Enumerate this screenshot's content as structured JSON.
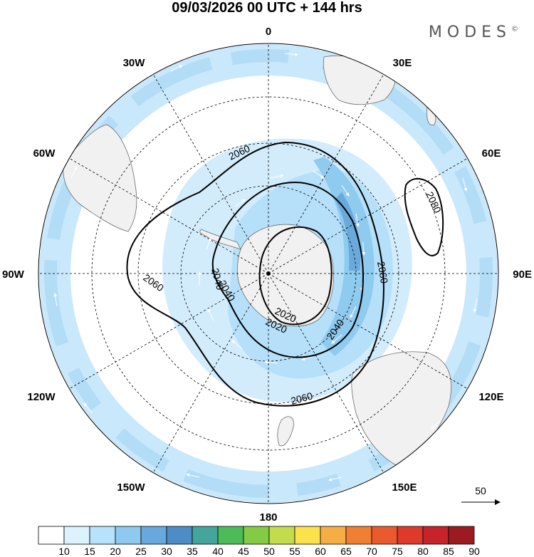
{
  "header": {
    "title": "09/03/2026  00 UTC  + 144 hrs",
    "brand": "MODES",
    "brand_mark": "©"
  },
  "map": {
    "projection": "south-polar-stereographic",
    "longitude_labels": {
      "top": "0",
      "bottom": "180",
      "left": "90W",
      "right": "90E",
      "upper_left_30": "30W",
      "upper_left_60": "60W",
      "upper_right_30": "30E",
      "upper_right_60": "60E",
      "lower_left_60": "120W",
      "lower_left_30": "150W",
      "lower_right_60": "120E",
      "lower_right_30": "150E"
    },
    "contour_labels": {
      "c1": "2060",
      "c2": "2060",
      "c3": "2080",
      "c4": "2040",
      "c5": "2060",
      "c6": "2040",
      "c7": "2020",
      "c8": "2040",
      "c9": "2020",
      "c10": "2060"
    },
    "reference_vector": {
      "label": "50"
    }
  },
  "colorbar": {
    "labels": [
      "10",
      "15",
      "20",
      "25",
      "30",
      "35",
      "40",
      "45",
      "50",
      "55",
      "60",
      "65",
      "70",
      "75",
      "80",
      "85",
      "90"
    ],
    "colors": [
      "#ffffff",
      "#dcf2ff",
      "#b6e2fb",
      "#8ecaef",
      "#68a8dc",
      "#4d8cc6",
      "#44a59d",
      "#4cbb58",
      "#83cb45",
      "#c3dc4d",
      "#fbe24d",
      "#f6ad43",
      "#f07f33",
      "#e95a2c",
      "#dd3a2c",
      "#c7232b",
      "#9e1a22"
    ]
  }
}
